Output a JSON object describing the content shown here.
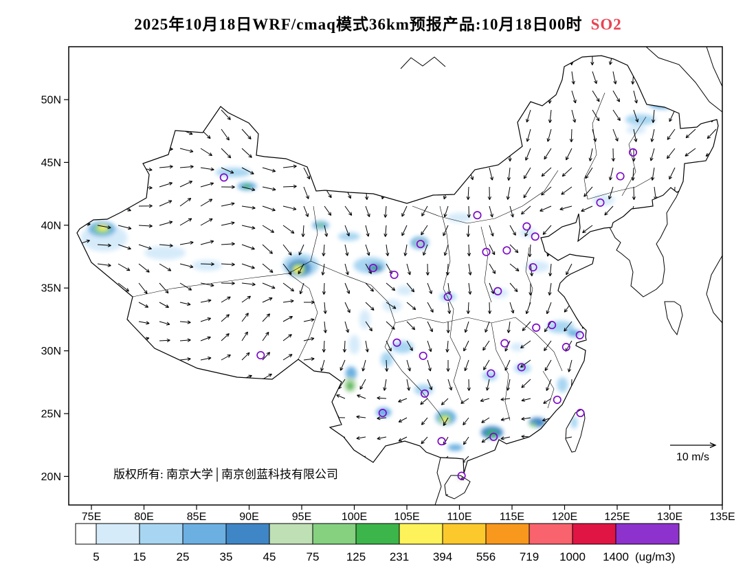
{
  "title": {
    "text": "2025年10月18日WRF/cmaq模式36km预报产品:10月18日00时",
    "pollutant": "SO2"
  },
  "colors": {
    "pollutant": "#e94352",
    "station_ring": "#7d0ac8",
    "copyright": "#3a3a3a"
  },
  "map": {
    "copyright": "版权所有: 南京大学│南京创蓝科技有限公司"
  },
  "chart_data": {
    "type": "heatmap",
    "subject": "SO2 surface concentration forecast, WRF/CMAQ 36km, 2025-10-18 00h",
    "projection": "lon-lat",
    "lon_ticks": [
      75,
      80,
      85,
      90,
      95,
      100,
      105,
      110,
      115,
      120,
      125,
      130,
      135
    ],
    "lon_tick_labels": [
      "75E",
      "80E",
      "85E",
      "90E",
      "95E",
      "100E",
      "105E",
      "110E",
      "115E",
      "120E",
      "125E",
      "130E",
      "135E"
    ],
    "lat_ticks": [
      50,
      45,
      40,
      35,
      30,
      25,
      20
    ],
    "lat_tick_labels": [
      "50N",
      "45N",
      "40N",
      "35N",
      "30N",
      "25N",
      "20N"
    ],
    "colorbar": {
      "levels": [
        5,
        15,
        25,
        35,
        45,
        75,
        125,
        231,
        394,
        556,
        719,
        1000,
        1400
      ],
      "colors": [
        "#ffffff",
        "#d6ebfa",
        "#a8d6f2",
        "#6cb0e2",
        "#3f86c6",
        "#bfdfb4",
        "#85d180",
        "#3cb54a",
        "#fdf25a",
        "#fcc92d",
        "#f8981d",
        "#f8636e",
        "#e01543",
        "#8d32cc"
      ],
      "unit": "(ug/m3)"
    },
    "wind_reference": {
      "speed_ms": 10,
      "label": "10 m/s"
    },
    "stations_lonlat": [
      [
        87.6,
        43.8
      ],
      [
        126.5,
        45.8
      ],
      [
        125.3,
        43.9
      ],
      [
        123.4,
        41.8
      ],
      [
        111.7,
        40.8
      ],
      [
        116.4,
        39.9
      ],
      [
        117.2,
        39.1
      ],
      [
        114.5,
        38.0
      ],
      [
        112.55,
        37.87
      ],
      [
        106.3,
        38.5
      ],
      [
        101.8,
        36.6
      ],
      [
        103.8,
        36.05
      ],
      [
        108.9,
        34.3
      ],
      [
        113.65,
        34.75
      ],
      [
        117.0,
        36.65
      ],
      [
        118.8,
        32.05
      ],
      [
        121.45,
        31.25
      ],
      [
        120.15,
        30.3
      ],
      [
        117.3,
        31.85
      ],
      [
        114.3,
        30.6
      ],
      [
        113.0,
        28.2
      ],
      [
        115.9,
        28.7
      ],
      [
        119.3,
        26.1
      ],
      [
        121.5,
        25.05
      ],
      [
        113.25,
        23.15
      ],
      [
        108.3,
        22.8
      ],
      [
        110.2,
        20.05
      ],
      [
        102.7,
        25.05
      ],
      [
        106.7,
        26.6
      ],
      [
        104.05,
        30.65
      ],
      [
        106.55,
        29.6
      ],
      [
        91.1,
        29.65
      ]
    ],
    "so2_blobs": [
      [
        76.2,
        39.0,
        34,
        20,
        10
      ],
      [
        76.0,
        39.7,
        20,
        11,
        30
      ],
      [
        76.0,
        39.7,
        12,
        7,
        90
      ],
      [
        76.1,
        39.8,
        7,
        4,
        300
      ],
      [
        82.0,
        37.8,
        30,
        10,
        12
      ],
      [
        86.0,
        36.8,
        22,
        8,
        12
      ],
      [
        88.5,
        44.2,
        26,
        7,
        15
      ],
      [
        89.8,
        43.1,
        14,
        6,
        30
      ],
      [
        89.8,
        43.1,
        6,
        3,
        150
      ],
      [
        96.8,
        40.0,
        12,
        6,
        30
      ],
      [
        96.8,
        40.0,
        5,
        3,
        90
      ],
      [
        94.9,
        36.8,
        26,
        17,
        15
      ],
      [
        94.8,
        36.6,
        17,
        12,
        40
      ],
      [
        94.7,
        36.5,
        10,
        8,
        90
      ],
      [
        94.65,
        36.45,
        6,
        5,
        300
      ],
      [
        101.5,
        36.8,
        24,
        12,
        15
      ],
      [
        102.0,
        36.6,
        11,
        6,
        40
      ],
      [
        102.0,
        36.6,
        5,
        3,
        150
      ],
      [
        106.2,
        38.6,
        13,
        9,
        25
      ],
      [
        106.2,
        38.6,
        6,
        4,
        60
      ],
      [
        99.5,
        39.1,
        16,
        6,
        15
      ],
      [
        103.6,
        33.6,
        14,
        9,
        10
      ],
      [
        104.8,
        34.8,
        12,
        7,
        12
      ],
      [
        101.0,
        32.5,
        8,
        14,
        12
      ],
      [
        110.0,
        40.6,
        18,
        7,
        12
      ],
      [
        116.5,
        39.4,
        12,
        7,
        12
      ],
      [
        123.7,
        42.0,
        16,
        8,
        12
      ],
      [
        126.8,
        47.6,
        14,
        6,
        12
      ],
      [
        127.2,
        48.4,
        22,
        8,
        18
      ],
      [
        129.3,
        49.7,
        20,
        8,
        25
      ],
      [
        130.6,
        50.3,
        14,
        6,
        40
      ],
      [
        117.4,
        36.7,
        18,
        8,
        10
      ],
      [
        119.6,
        31.9,
        20,
        9,
        15
      ],
      [
        120.9,
        31.4,
        10,
        5,
        30
      ],
      [
        104.6,
        30.3,
        16,
        9,
        15
      ],
      [
        103.1,
        29.3,
        9,
        11,
        20
      ],
      [
        100.0,
        30.5,
        8,
        14,
        12
      ],
      [
        99.7,
        28.2,
        8,
        10,
        25
      ],
      [
        99.6,
        27.3,
        9,
        11,
        60
      ],
      [
        99.6,
        27.2,
        5,
        6,
        150
      ],
      [
        102.8,
        25.1,
        11,
        7,
        25
      ],
      [
        106.6,
        26.9,
        14,
        8,
        15
      ],
      [
        108.7,
        24.7,
        15,
        11,
        30
      ],
      [
        108.6,
        24.6,
        9,
        7,
        90
      ],
      [
        108.65,
        24.5,
        5,
        4,
        300
      ],
      [
        113.1,
        23.5,
        16,
        9,
        40
      ],
      [
        113.1,
        23.4,
        8,
        5,
        150
      ],
      [
        112.9,
        28.0,
        11,
        7,
        18
      ],
      [
        116.0,
        28.6,
        12,
        7,
        15
      ],
      [
        115.5,
        30.3,
        10,
        6,
        12
      ],
      [
        117.4,
        24.3,
        12,
        7,
        40
      ],
      [
        117.0,
        24.1,
        5,
        3,
        90
      ],
      [
        119.8,
        27.3,
        8,
        11,
        15
      ],
      [
        109.6,
        22.3,
        11,
        5,
        25
      ],
      [
        110.1,
        19.9,
        5,
        3,
        60
      ],
      [
        120.9,
        24.3,
        5,
        9,
        20
      ],
      [
        108.9,
        34.3,
        12,
        6,
        18
      ],
      [
        113.8,
        34.6,
        13,
        7,
        10
      ]
    ]
  }
}
